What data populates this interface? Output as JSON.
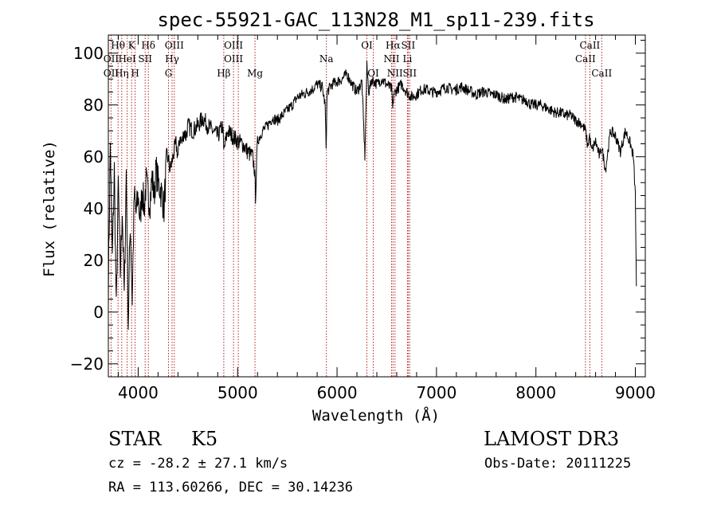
{
  "chart_data": {
    "type": "line",
    "title": "spec-55921-GAC_113N28_M1_sp11-239.fits",
    "xlabel": "Wavelength (Å)",
    "ylabel": "Flux (relative)",
    "xlim": [
      3700,
      9100
    ],
    "ylim": [
      -25,
      107
    ],
    "xticks": [
      4000,
      5000,
      6000,
      7000,
      8000,
      9000
    ],
    "yticks": [
      -20,
      0,
      20,
      40,
      60,
      80,
      100
    ],
    "series": [
      {
        "name": "flux",
        "x": [
          3700,
          3720,
          3740,
          3760,
          3780,
          3800,
          3820,
          3840,
          3860,
          3880,
          3900,
          3920,
          3940,
          3960,
          3980,
          4000,
          4020,
          4040,
          4060,
          4080,
          4100,
          4120,
          4140,
          4160,
          4180,
          4200,
          4220,
          4240,
          4260,
          4280,
          4300,
          4320,
          4340,
          4360,
          4380,
          4400,
          4420,
          4440,
          4460,
          4480,
          4500,
          4550,
          4600,
          4650,
          4700,
          4750,
          4800,
          4850,
          4860,
          4900,
          4950,
          5000,
          5050,
          5100,
          5150,
          5170,
          5180,
          5200,
          5250,
          5300,
          5350,
          5400,
          5450,
          5500,
          5550,
          5600,
          5650,
          5700,
          5750,
          5800,
          5850,
          5880,
          5890,
          5900,
          5950,
          6000,
          6050,
          6100,
          6150,
          6200,
          6250,
          6280,
          6300,
          6320,
          6350,
          6400,
          6450,
          6500,
          6550,
          6560,
          6570,
          6600,
          6650,
          6700,
          6750,
          6800,
          6850,
          6900,
          6950,
          7000,
          7050,
          7100,
          7150,
          7200,
          7250,
          7300,
          7350,
          7400,
          7450,
          7500,
          7550,
          7600,
          7650,
          7700,
          7750,
          7800,
          7850,
          7900,
          7950,
          8000,
          8050,
          8100,
          8150,
          8200,
          8250,
          8300,
          8350,
          8400,
          8450,
          8500,
          8520,
          8540,
          8560,
          8600,
          8640,
          8660,
          8700,
          8750,
          8800,
          8850,
          8900,
          8950,
          8980,
          9000,
          9010
        ],
        "values": [
          10,
          65,
          20,
          55,
          0,
          50,
          15,
          40,
          5,
          55,
          -5,
          35,
          5,
          45,
          38,
          45,
          35,
          48,
          40,
          50,
          45,
          43,
          52,
          45,
          55,
          50,
          48,
          45,
          40,
          55,
          60,
          55,
          58,
          62,
          65,
          60,
          68,
          65,
          70,
          68,
          72,
          70,
          72,
          75,
          72,
          70,
          68,
          72,
          62,
          70,
          68,
          66,
          65,
          62,
          60,
          55,
          45,
          66,
          70,
          72,
          75,
          74,
          76,
          78,
          80,
          83,
          84,
          85,
          86,
          88,
          87,
          80,
          64,
          85,
          88,
          89,
          90,
          92,
          88,
          85,
          89,
          60,
          95,
          85,
          90,
          88,
          90,
          88,
          86,
          78,
          84,
          86,
          88,
          85,
          83,
          84,
          86,
          86,
          85,
          85,
          86,
          87,
          86,
          86,
          87,
          86,
          85,
          84,
          85,
          85,
          84,
          84,
          83,
          82,
          83,
          83,
          82,
          82,
          80,
          80,
          80,
          79,
          78,
          77,
          77,
          76,
          76,
          74,
          73,
          70,
          64,
          68,
          62,
          66,
          60,
          64,
          55,
          70,
          68,
          62,
          70,
          65,
          60,
          45,
          10
        ]
      }
    ],
    "annotations": [
      {
        "label": "Hθ",
        "x": 3797,
        "row": 1
      },
      {
        "label": "OII",
        "x": 3727,
        "row": 2
      },
      {
        "label": "OII",
        "x": 3727,
        "row": 3
      },
      {
        "label": "Hη",
        "x": 3835,
        "row": 3
      },
      {
        "label": "K",
        "x": 3934,
        "row": 1
      },
      {
        "label": "HeI",
        "x": 3889,
        "row": 2
      },
      {
        "label": "H",
        "x": 3969,
        "row": 3
      },
      {
        "label": "SII",
        "x": 4070,
        "row": 2
      },
      {
        "label": "Hδ",
        "x": 4102,
        "row": 1
      },
      {
        "label": "OIII",
        "x": 4363,
        "row": 1
      },
      {
        "label": "Hγ",
        "x": 4341,
        "row": 2
      },
      {
        "label": "G",
        "x": 4305,
        "row": 3
      },
      {
        "label": "OIII",
        "x": 4959,
        "row": 1
      },
      {
        "label": "OIII",
        "x": 4959,
        "row": 2
      },
      {
        "label": "Hβ",
        "x": 4861,
        "row": 3
      },
      {
        "label": "Mg",
        "x": 5175,
        "row": 3
      },
      {
        "label": "Na",
        "x": 5893,
        "row": 2
      },
      {
        "label": "OI",
        "x": 6300,
        "row": 1
      },
      {
        "label": "OI",
        "x": 6364,
        "row": 3
      },
      {
        "label": "Hα",
        "x": 6563,
        "row": 1
      },
      {
        "label": "SII",
        "x": 6716,
        "row": 1
      },
      {
        "label": "NII",
        "x": 6548,
        "row": 2
      },
      {
        "label": "Li",
        "x": 6708,
        "row": 2
      },
      {
        "label": "NII",
        "x": 6583,
        "row": 3
      },
      {
        "label": "SII",
        "x": 6731,
        "row": 3
      },
      {
        "label": "CaII",
        "x": 8542,
        "row": 1
      },
      {
        "label": "CaII",
        "x": 8498,
        "row": 2
      },
      {
        "label": "CaII",
        "x": 8662,
        "row": 3
      }
    ],
    "line_positions": [
      3727,
      3798,
      3835,
      3889,
      3934,
      3969,
      4070,
      4102,
      4305,
      4341,
      4363,
      4861,
      4959,
      5007,
      5175,
      5893,
      6300,
      6364,
      6548,
      6563,
      6583,
      6708,
      6716,
      6731,
      8498,
      8542,
      8662
    ],
    "colors": {
      "spectrum": "#000000",
      "lines": "#b22222",
      "axes": "#000000"
    }
  },
  "info": {
    "object_class": "STAR",
    "subclass": "K5",
    "survey": "LAMOST DR3",
    "redshift_text": "cz = -28.2 ± 27.1 km/s",
    "obs_date": "Obs-Date: 20111225",
    "coordinates": "RA = 113.60266, DEC =  30.14236"
  }
}
